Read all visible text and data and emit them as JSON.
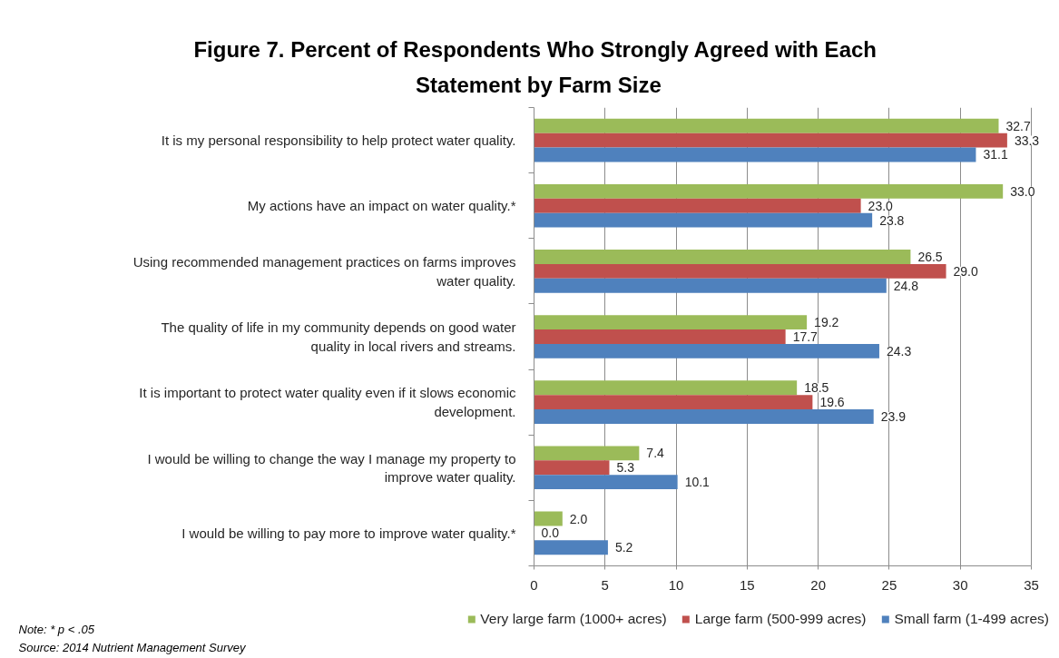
{
  "chart_data": {
    "type": "bar",
    "orientation": "horizontal",
    "title": "Figure 7.  Percent of Respondents Who Strongly Agreed with Each Statement by Farm Size",
    "categories": [
      "It is my personal responsibility to help protect water quality.",
      "My actions have an impact on water quality.*",
      "Using recommended management practices on farms improves water quality.",
      "The quality of life in my community depends on good water quality in local rivers and streams.",
      "It is important to protect water quality even if it slows economic development.",
      "I would be willing to change the way I manage my property to improve water quality.",
      "I would be willing to pay more to improve water quality.*"
    ],
    "series": [
      {
        "name": "Very large farm (1000+ acres)",
        "color": "#9bbb59",
        "values": [
          32.7,
          33.0,
          26.5,
          19.2,
          18.5,
          7.4,
          2.0
        ],
        "value_labels": [
          "32.7",
          "33.0",
          "26.5",
          "19.2",
          "18.5",
          "7.4",
          "2.0"
        ]
      },
      {
        "name": "Large farm (500-999 acres)",
        "color": "#c0504d",
        "values": [
          33.3,
          23.0,
          29.0,
          17.7,
          19.6,
          5.3,
          0.0
        ],
        "value_labels": [
          "33.3",
          "23.0",
          "29.0",
          "17.7",
          "19.6",
          "5.3",
          "0.0"
        ]
      },
      {
        "name": "Small farm (1-499 acres)",
        "color": "#4f81bd",
        "values": [
          31.1,
          23.8,
          24.8,
          24.3,
          23.9,
          10.1,
          5.2
        ],
        "value_labels": [
          "31.1",
          "23.8",
          "24.8",
          "24.3",
          "23.9",
          "10.1",
          "5.2"
        ]
      }
    ],
    "xlim": [
      0,
      35
    ],
    "xticks": [
      0,
      5,
      10,
      15,
      20,
      25,
      30,
      35
    ],
    "grid": "x",
    "legend": "bottom",
    "annotations": [
      "Note: * p < .05",
      "Source: 2014 Nutrient Management Survey"
    ]
  }
}
